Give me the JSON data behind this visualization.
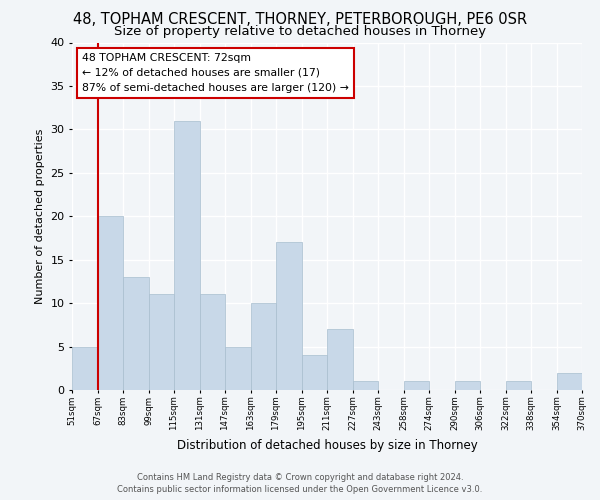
{
  "title": "48, TOPHAM CRESCENT, THORNEY, PETERBOROUGH, PE6 0SR",
  "subtitle": "Size of property relative to detached houses in Thorney",
  "xlabel": "Distribution of detached houses by size in Thorney",
  "ylabel": "Number of detached properties",
  "bin_labels": [
    "51sqm",
    "67sqm",
    "83sqm",
    "99sqm",
    "115sqm",
    "131sqm",
    "147sqm",
    "163sqm",
    "179sqm",
    "195sqm",
    "211sqm",
    "227sqm",
    "243sqm",
    "258sqm",
    "274sqm",
    "290sqm",
    "306sqm",
    "322sqm",
    "338sqm",
    "354sqm",
    "370sqm"
  ],
  "bar_values": [
    5,
    20,
    13,
    11,
    31,
    11,
    5,
    10,
    17,
    4,
    7,
    1,
    0,
    1,
    0,
    1,
    0,
    1,
    0,
    2,
    0
  ],
  "bar_color": "#c8d8e8",
  "bar_edge_color": "#a8bece",
  "vline_x": 1,
  "vline_color": "#cc0000",
  "ylim": [
    0,
    40
  ],
  "yticks": [
    0,
    5,
    10,
    15,
    20,
    25,
    30,
    35,
    40
  ],
  "annotation_title": "48 TOPHAM CRESCENT: 72sqm",
  "annotation_line1": "← 12% of detached houses are smaller (17)",
  "annotation_line2": "87% of semi-detached houses are larger (120) →",
  "annotation_box_color": "#ffffff",
  "annotation_box_edge": "#cc0000",
  "footer_line1": "Contains HM Land Registry data © Crown copyright and database right 2024.",
  "footer_line2": "Contains public sector information licensed under the Open Government Licence v3.0.",
  "background_color": "#f2f5f8",
  "grid_color": "#ffffff",
  "title_fontsize": 10.5,
  "subtitle_fontsize": 9.5
}
